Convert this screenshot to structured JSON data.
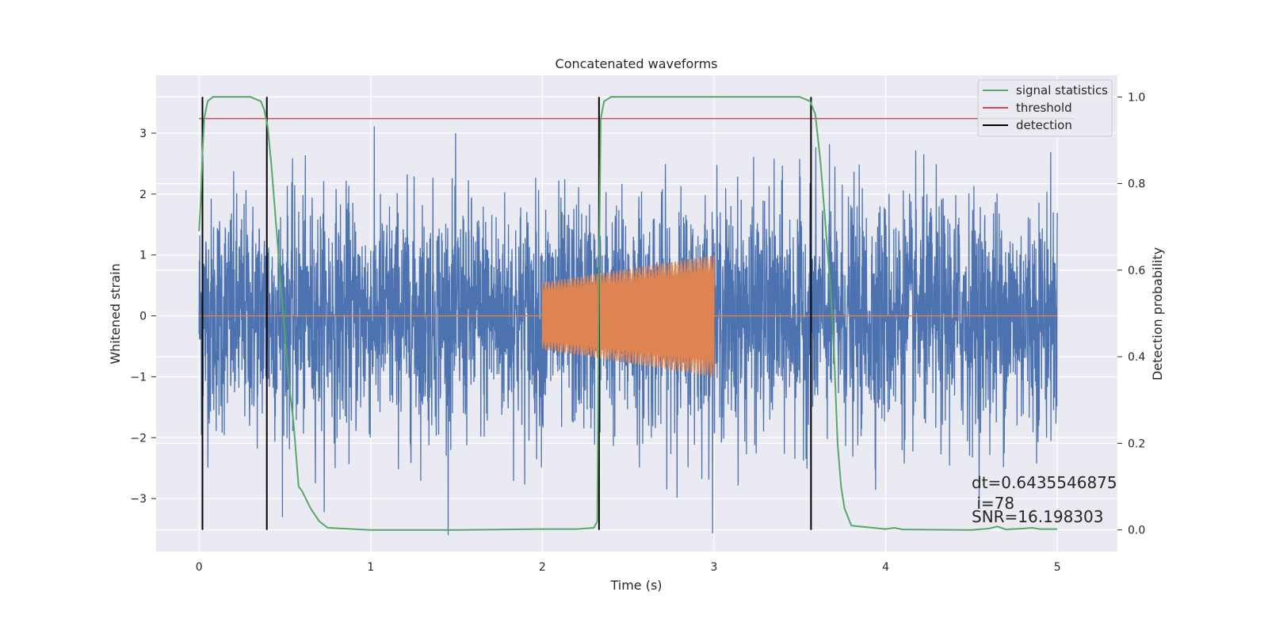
{
  "chart_data": {
    "type": "line",
    "title": "Concatenated waveforms",
    "xlabel": "Time (s)",
    "ylabel_left": "Whitened strain",
    "ylabel_right": "Detection probability",
    "xlim": [
      -0.25,
      5.35
    ],
    "ylim_left": [
      -3.87,
      3.95
    ],
    "ylim_right": [
      -0.05,
      1.05
    ],
    "x_ticks": [
      0,
      1,
      2,
      3,
      4,
      5
    ],
    "y_left_ticks": [
      -3,
      -2,
      -1,
      0,
      1,
      2,
      3
    ],
    "y_left_tick_labels": [
      "−3",
      "−2",
      "−1",
      "0",
      "1",
      "2",
      "3"
    ],
    "y_right_ticks": [
      0.0,
      0.2,
      0.4,
      0.6,
      0.8,
      1.0
    ],
    "y_right_tick_labels": [
      "0.0",
      "0.2",
      "0.4",
      "0.6",
      "0.8",
      "1.0"
    ],
    "grid": true,
    "legend_position": "top-right",
    "series": [
      {
        "name": "",
        "axis": "left",
        "color": "#4c72b0",
        "kind": "noise",
        "x_range": [
          0,
          5
        ],
        "amplitude_rms": 0.95,
        "peak": 3.6
      },
      {
        "name": "",
        "axis": "left",
        "color": "#dd8452",
        "kind": "chirp",
        "x_range": [
          0,
          5
        ],
        "active_range": [
          2.0,
          3.0
        ],
        "amplitude_start": 0.55,
        "amplitude_end": 1.0
      },
      {
        "name": "signal statistics",
        "axis": "right",
        "color": "#55a868",
        "x": [
          0,
          0.01,
          0.02,
          0.03,
          0.05,
          0.08,
          0.15,
          0.3,
          0.36,
          0.38,
          0.4,
          0.42,
          0.45,
          0.48,
          0.5,
          0.52,
          0.55,
          0.58,
          0.6,
          0.65,
          0.7,
          0.75,
          1.0,
          1.5,
          2.0,
          2.2,
          2.3,
          2.32,
          2.33,
          2.34,
          2.36,
          2.4,
          2.5,
          3.0,
          3.5,
          3.56,
          3.59,
          3.62,
          3.65,
          3.68,
          3.7,
          3.72,
          3.74,
          3.76,
          3.8,
          4.0,
          4.05,
          4.1,
          4.5,
          4.6,
          4.65,
          4.7,
          4.8,
          4.85,
          4.9,
          5.0
        ],
        "y": [
          0.69,
          0.76,
          0.87,
          0.95,
          0.99,
          1.0,
          1.0,
          1.0,
          0.99,
          0.97,
          0.93,
          0.85,
          0.7,
          0.55,
          0.45,
          0.35,
          0.25,
          0.1,
          0.09,
          0.05,
          0.02,
          0.005,
          0.0,
          0.0,
          0.002,
          0.002,
          0.005,
          0.02,
          0.6,
          0.95,
          0.99,
          1.0,
          1.0,
          1.0,
          1.0,
          0.99,
          0.96,
          0.85,
          0.7,
          0.55,
          0.4,
          0.2,
          0.1,
          0.05,
          0.01,
          0.002,
          0.005,
          0.001,
          0.0,
          0.003,
          0.008,
          0.001,
          0.003,
          0.005,
          0.002,
          0.002
        ]
      },
      {
        "name": "threshold",
        "axis": "right",
        "color": "#c44e52",
        "x": [
          0,
          5.1
        ],
        "y": [
          0.95,
          0.95
        ]
      }
    ],
    "detections": {
      "name": "detection",
      "color": "#000000",
      "x": [
        0.02,
        0.395,
        2.33,
        3.565
      ],
      "y_range": [
        0.0,
        1.0
      ]
    },
    "annotations": [
      "dt=0.6435546875",
      " i=78",
      "SNR=16.198303"
    ]
  }
}
